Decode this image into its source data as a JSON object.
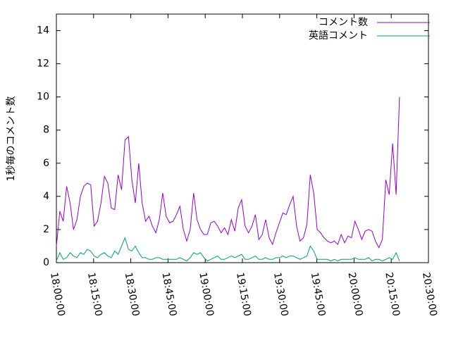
{
  "chart_data": {
    "type": "line",
    "ylabel": "1秒毎のコメント数",
    "x": [
      "18:00:00",
      "18:01:23",
      "18:02:46",
      "18:04:09",
      "18:05:32",
      "18:06:55",
      "18:08:18",
      "18:09:41",
      "18:11:04",
      "18:12:27",
      "18:13:50",
      "18:15:13",
      "18:16:36",
      "18:17:59",
      "18:19:22",
      "18:20:45",
      "18:22:08",
      "18:23:31",
      "18:24:54",
      "18:26:17",
      "18:27:40",
      "18:29:03",
      "18:30:26",
      "18:31:49",
      "18:33:12",
      "18:34:35",
      "18:35:58",
      "18:37:21",
      "18:38:44",
      "18:40:07",
      "18:41:30",
      "18:42:53",
      "18:44:16",
      "18:45:39",
      "18:47:02",
      "18:48:25",
      "18:49:48",
      "18:51:11",
      "18:52:34",
      "18:53:57",
      "18:55:20",
      "18:56:43",
      "18:58:06",
      "18:59:29",
      "19:00:52",
      "19:02:15",
      "19:03:38",
      "19:05:01",
      "19:06:24",
      "19:07:47",
      "19:09:10",
      "19:10:33",
      "19:11:56",
      "19:13:19",
      "19:14:42",
      "19:16:05",
      "19:17:28",
      "19:18:51",
      "19:20:14",
      "19:21:37",
      "19:23:00",
      "19:24:23",
      "19:25:46",
      "19:27:09",
      "19:28:32",
      "19:29:55",
      "19:31:18",
      "19:32:41",
      "19:34:04",
      "19:35:27",
      "19:36:50",
      "19:38:13",
      "19:39:36",
      "19:40:59",
      "19:42:22",
      "19:43:45",
      "19:45:08",
      "19:46:31",
      "19:47:54",
      "19:49:17",
      "19:50:40",
      "19:52:03",
      "19:53:26",
      "19:54:49",
      "19:56:12",
      "19:57:35",
      "19:58:58",
      "20:00:21",
      "20:01:44",
      "20:03:07",
      "20:04:30",
      "20:05:53",
      "20:07:16",
      "20:08:39",
      "20:10:02",
      "20:11:25",
      "20:12:48",
      "20:14:11",
      "20:15:34",
      "20:16:57",
      "20:18:20"
    ],
    "series": [
      {
        "name": "コメント数",
        "color": "#9400d3",
        "values": [
          1.0,
          3.1,
          2.5,
          4.6,
          3.6,
          2.0,
          2.6,
          4.0,
          4.6,
          4.8,
          4.7,
          2.2,
          2.5,
          3.6,
          5.2,
          4.8,
          3.3,
          3.2,
          5.3,
          4.4,
          7.4,
          7.6,
          5.0,
          3.6,
          6.0,
          3.6,
          2.5,
          2.8,
          2.2,
          1.8,
          2.6,
          4.2,
          2.8,
          2.4,
          2.5,
          2.9,
          3.4,
          2.0,
          1.3,
          2.0,
          4.2,
          2.6,
          2.0,
          1.7,
          1.7,
          2.4,
          2.5,
          2.2,
          1.8,
          2.1,
          1.7,
          2.6,
          1.9,
          3.3,
          3.8,
          2.2,
          1.8,
          2.2,
          2.9,
          1.4,
          1.7,
          2.6,
          1.5,
          1.1,
          1.8,
          2.4,
          3.0,
          2.9,
          3.5,
          4.0,
          2.2,
          1.3,
          1.5,
          2.3,
          5.3,
          4.2,
          2.0,
          1.8,
          1.5,
          1.3,
          1.2,
          1.3,
          1.1,
          1.7,
          1.2,
          1.6,
          1.5,
          2.5,
          2.0,
          1.4,
          1.9,
          2.0,
          1.9,
          1.3,
          0.9,
          1.4,
          5.0,
          4.1,
          7.2,
          4.1,
          10.0
        ]
      },
      {
        "name": "英語コメント",
        "color": "#009e73",
        "values": [
          0.1,
          0.6,
          0.2,
          0.3,
          0.6,
          0.4,
          0.3,
          0.6,
          0.5,
          0.8,
          0.7,
          0.4,
          0.3,
          0.5,
          0.6,
          0.4,
          0.3,
          0.7,
          0.5,
          1.0,
          1.5,
          0.8,
          0.7,
          1.0,
          0.6,
          0.3,
          0.3,
          0.2,
          0.2,
          0.3,
          0.3,
          0.2,
          0.2,
          0.2,
          0.2,
          0.2,
          0.3,
          0.2,
          0.1,
          0.3,
          0.6,
          0.5,
          0.6,
          0.3,
          0.1,
          0.2,
          0.3,
          0.4,
          0.2,
          0.2,
          0.3,
          0.4,
          0.3,
          0.4,
          0.5,
          0.2,
          0.2,
          0.3,
          0.4,
          0.2,
          0.2,
          0.3,
          0.2,
          0.2,
          0.3,
          0.3,
          0.4,
          0.3,
          0.4,
          0.4,
          0.3,
          0.2,
          0.3,
          0.4,
          1.0,
          0.7,
          0.2,
          0.2,
          0.2,
          0.2,
          0.1,
          0.2,
          0.1,
          0.2,
          0.2,
          0.2,
          0.2,
          0.3,
          0.2,
          0.2,
          0.2,
          0.3,
          0.1,
          0.2,
          0.2,
          0.1,
          0.2,
          0.3,
          0.2,
          0.6,
          0.1
        ]
      }
    ],
    "xlim": [
      "18:00:00",
      "20:30:00"
    ],
    "xticks": [
      "18:00:00",
      "18:15:00",
      "18:30:00",
      "18:45:00",
      "19:00:00",
      "19:15:00",
      "19:30:00",
      "19:45:00",
      "20:00:00",
      "20:15:00",
      "20:30:00"
    ],
    "ylim": [
      0,
      15
    ],
    "yticks": [
      0,
      2,
      4,
      6,
      8,
      10,
      12,
      14
    ],
    "legend": "top right",
    "grid": false
  }
}
